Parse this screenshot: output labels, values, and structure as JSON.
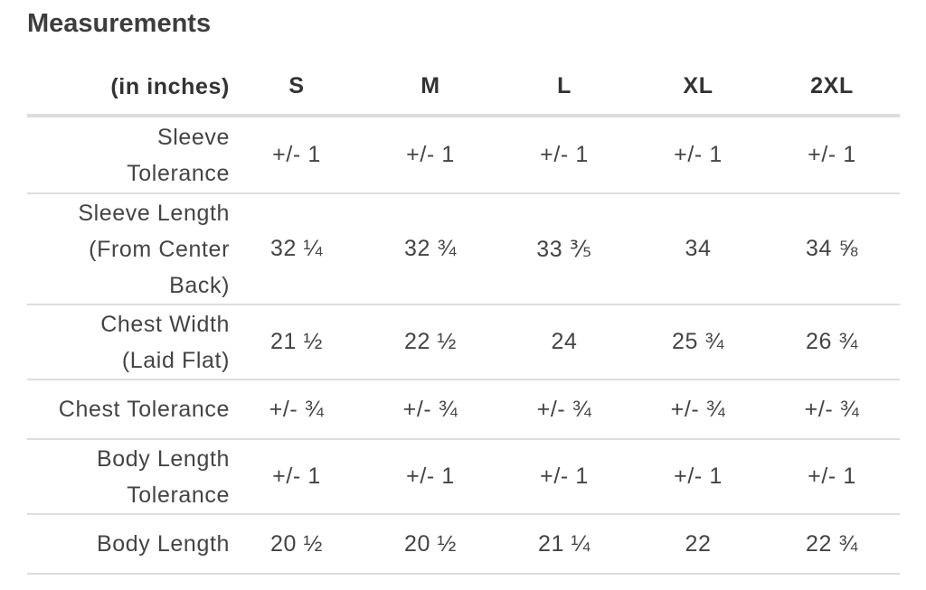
{
  "title": "Measurements",
  "table": {
    "header": [
      "(in inches)",
      "S",
      "M",
      "L",
      "XL",
      "2XL"
    ],
    "rows": [
      [
        "Sleeve Tolerance",
        "+/- 1",
        "+/- 1",
        "+/- 1",
        "+/- 1",
        "+/- 1"
      ],
      [
        "Sleeve Length (From Center Back)",
        "32 ¼",
        "32 ¾",
        "33 ⅗",
        "34",
        "34 ⅝"
      ],
      [
        "Chest Width (Laid Flat)",
        "21 ½",
        "22 ½",
        "24",
        "25 ¾",
        "26 ¾"
      ],
      [
        "Chest Tolerance",
        "+/- ¾",
        "+/- ¾",
        "+/- ¾",
        "+/- ¾",
        "+/- ¾"
      ],
      [
        "Body Length Tolerance",
        "+/- 1",
        "+/- 1",
        "+/- 1",
        "+/- 1",
        "+/- 1"
      ],
      [
        "Body Length",
        "20 ½",
        "20 ½",
        "21 ¼",
        "22",
        "22 ¾"
      ]
    ]
  }
}
